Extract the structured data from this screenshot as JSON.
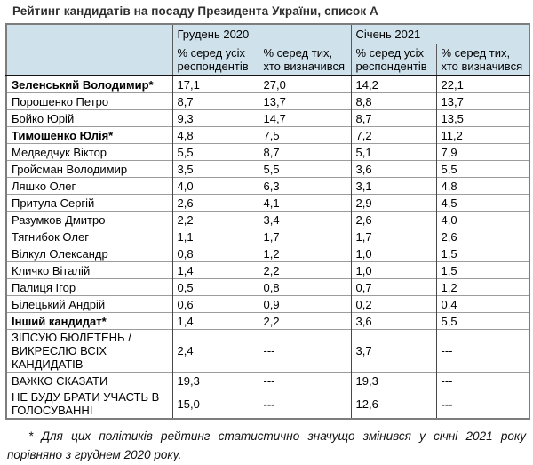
{
  "title": "Рейтинг кандидатів на посаду Президента України, список А",
  "colors": {
    "header_bg": "#cfe2ec",
    "grid_dark": "#474747",
    "grid_light": "#9c9c9c",
    "outer_border": "#7d7d7d"
  },
  "table": {
    "column_groups": [
      {
        "label": "Грудень 2020"
      },
      {
        "label": "Січень 2021"
      }
    ],
    "sub_headers": [
      "% серед усіх респондентів",
      "% серед тих, хто визначився",
      "% серед усіх респондентів",
      "% серед тих, хто визначився"
    ],
    "rows": [
      {
        "name": "Зеленський Володимир*",
        "bold": true,
        "values": [
          "17,1",
          "27,0",
          "14,2",
          "22,1"
        ]
      },
      {
        "name": "Порошенко Петро",
        "bold": false,
        "values": [
          "8,7",
          "13,7",
          "8,8",
          "13,7"
        ]
      },
      {
        "name": "Бойко Юрій",
        "bold": false,
        "values": [
          "9,3",
          "14,7",
          "8,7",
          "13,5"
        ]
      },
      {
        "name": "Тимошенко Юлія*",
        "bold": true,
        "values": [
          "4,8",
          "7,5",
          "7,2",
          "11,2"
        ]
      },
      {
        "name": "Медведчук Віктор",
        "bold": false,
        "values": [
          "5,5",
          "8,7",
          "5,1",
          "7,9"
        ]
      },
      {
        "name": "Гройсман Володимир",
        "bold": false,
        "values": [
          "3,5",
          "5,5",
          "3,6",
          "5,5"
        ]
      },
      {
        "name": "Ляшко Олег",
        "bold": false,
        "values": [
          "4,0",
          "6,3",
          "3,1",
          "4,8"
        ]
      },
      {
        "name": "Притула Сергій",
        "bold": false,
        "values": [
          "2,6",
          "4,1",
          "2,9",
          "4,5"
        ]
      },
      {
        "name": "Разумков Дмитро",
        "bold": false,
        "values": [
          "2,2",
          "3,4",
          "2,6",
          "4,0"
        ]
      },
      {
        "name": "Тягнибок Олег",
        "bold": false,
        "values": [
          "1,1",
          "1,7",
          "1,7",
          "2,6"
        ]
      },
      {
        "name": "Вілкул Олександр",
        "bold": false,
        "values": [
          "0,8",
          "1,2",
          "1,0",
          "1,5"
        ]
      },
      {
        "name": "Кличко Віталій",
        "bold": false,
        "values": [
          "1,4",
          "2,2",
          "1,0",
          "1,5"
        ]
      },
      {
        "name": "Палиця Ігор",
        "bold": false,
        "values": [
          "0,5",
          "0,8",
          "0,7",
          "1,2"
        ]
      },
      {
        "name": "Білецький Андрій",
        "bold": false,
        "values": [
          "0,6",
          "0,9",
          "0,2",
          "0,4"
        ]
      },
      {
        "name": "Інший кандидат*",
        "bold": true,
        "values": [
          "1,4",
          "2,2",
          "3,6",
          "5,5"
        ]
      },
      {
        "name": "ЗІПСУЮ БЮЛЕТЕНЬ / ВИКРЕСЛЮ ВСІХ КАНДИДАТІВ",
        "bold": false,
        "values": [
          "2,4",
          "---",
          "3,7",
          "---"
        ]
      },
      {
        "name": "ВАЖКО СКАЗАТИ",
        "bold": false,
        "values": [
          "19,3",
          "---",
          "19,3",
          "---"
        ]
      },
      {
        "name": "НЕ БУДУ БРАТИ УЧАСТЬ В ГОЛОСУВАННІ",
        "bold": false,
        "values": [
          "15,0",
          "---",
          "12,6",
          "---"
        ],
        "bold_values": [
          false,
          true,
          false,
          true
        ]
      }
    ]
  },
  "footnote": "* Для цих політиків рейтинг статистично значущо змінився у січні 2021 року порівняно з груднем 2020 року."
}
